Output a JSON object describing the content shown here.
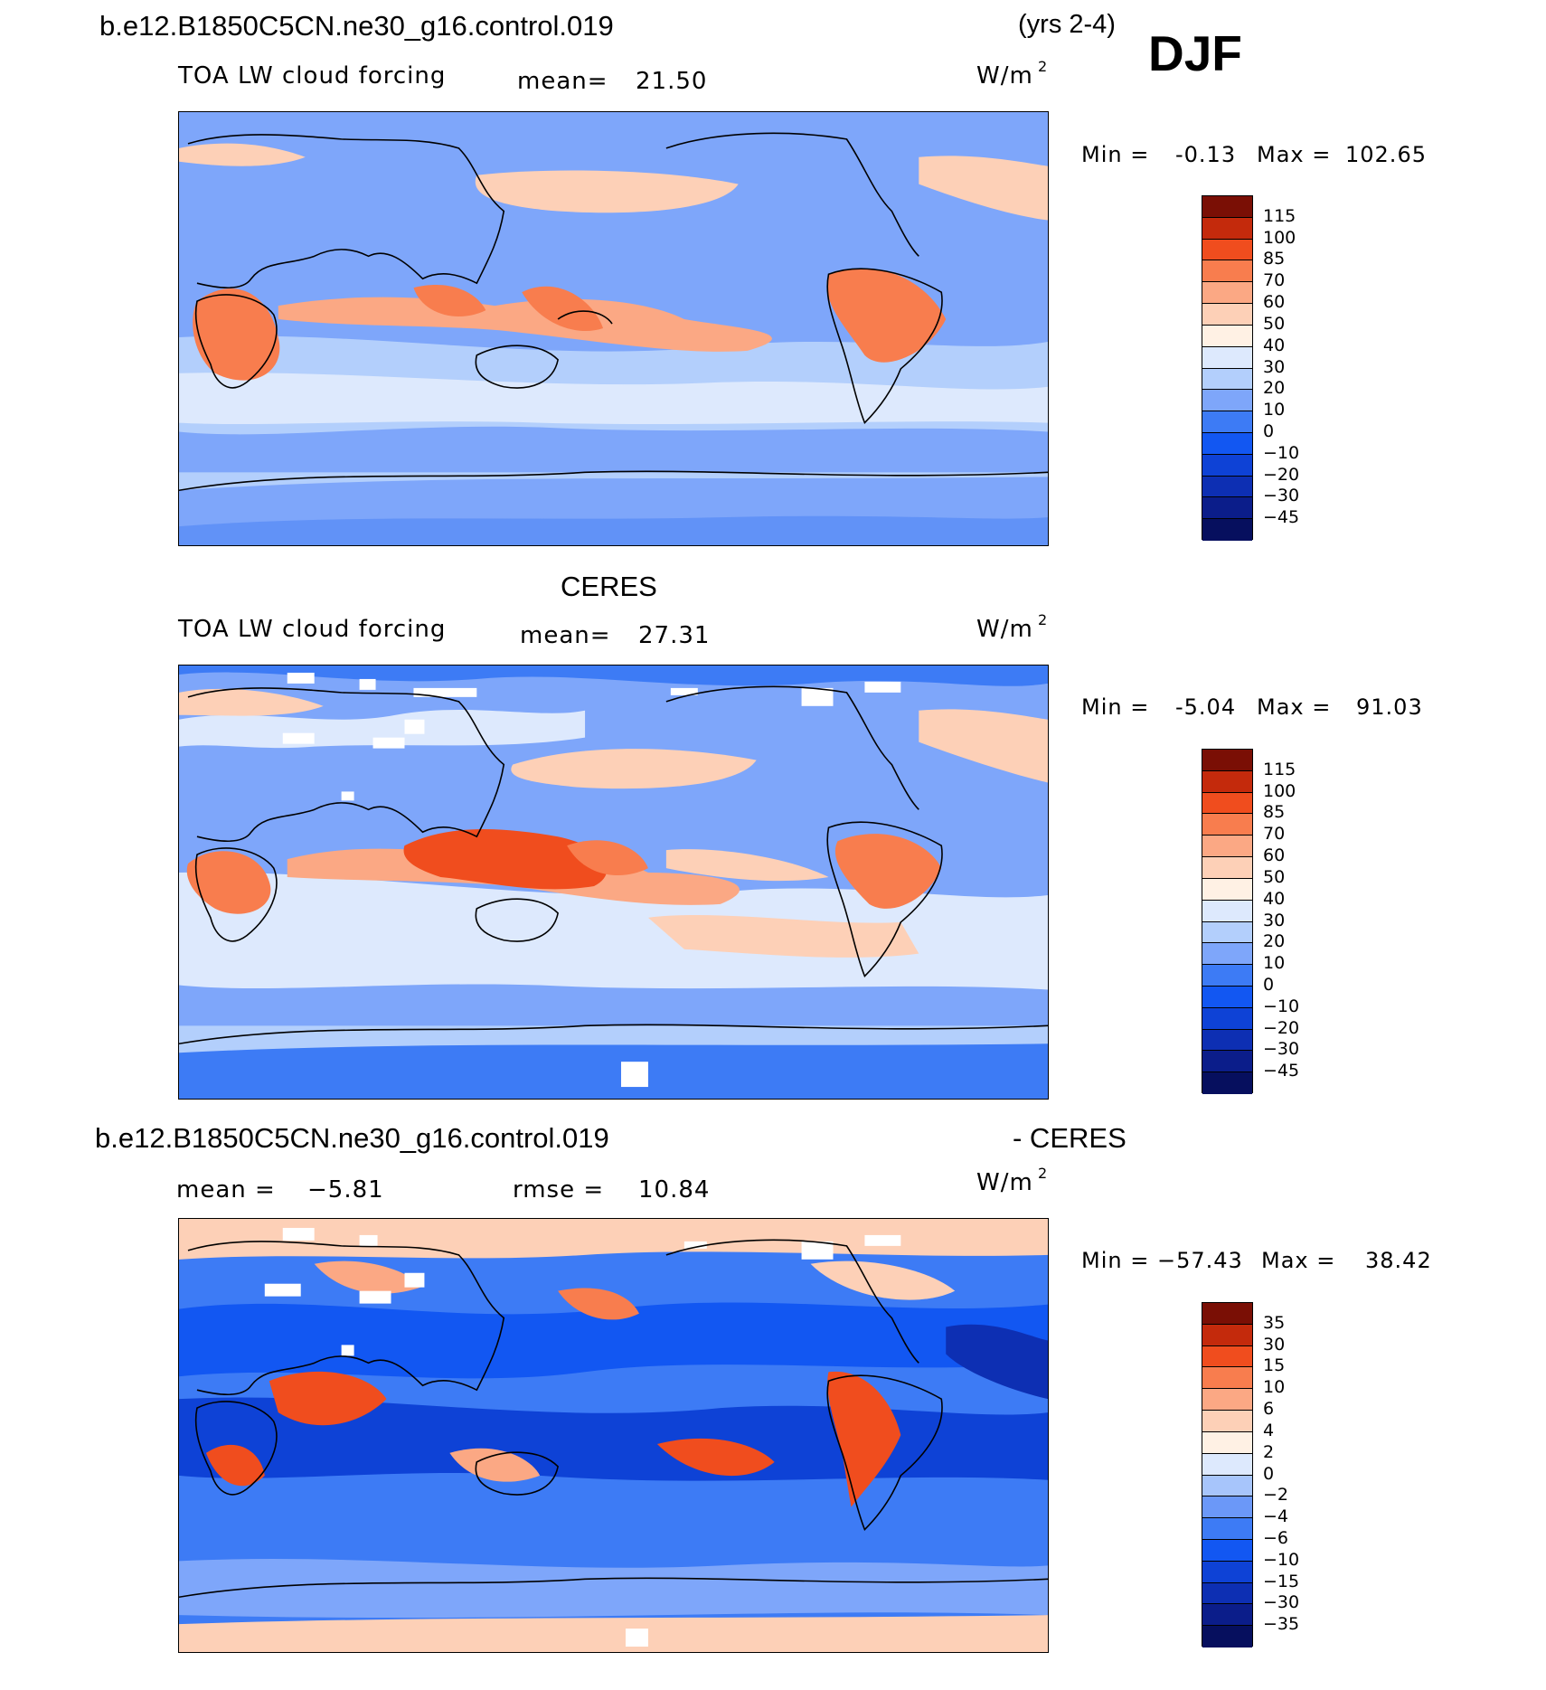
{
  "header": {
    "case_name": "b.e12.B1850C5CN.ne30_g16.control.019",
    "years": "(yrs 2-4)",
    "season": "DJF"
  },
  "middle": {
    "title": "CERES"
  },
  "bottom": {
    "case_name": "b.e12.B1850C5CN.ne30_g16.control.019",
    "suffix": "- CERES"
  },
  "colors": {
    "main_scale": [
      "#0b1d8a",
      "#0d2fb3",
      "#0e42d6",
      "#1257f2",
      "#3d7bf5",
      "#7ea6fa",
      "#b3cffc",
      "#dde9fd",
      "#fff1e4",
      "#fdd0b7",
      "#fba884",
      "#f87d4e",
      "#f04d1e",
      "#c42a0c",
      "#8c1508"
    ],
    "diff_scale": [
      "#0b1d8a",
      "#0d2fb3",
      "#0e42d6",
      "#1257f2",
      "#3d7bf5",
      "#6b98f8",
      "#a7c5fb",
      "#dde9fd",
      "#fff1e4",
      "#fdd0b7",
      "#fba884",
      "#f87d4e",
      "#f04d1e",
      "#c42a0c",
      "#8c1508"
    ],
    "land_outline": "#000000"
  },
  "chart_data": [
    {
      "type": "heatmap",
      "panel": "model",
      "variable": "TOA LW cloud forcing",
      "mean_label": "mean=",
      "mean_value": "21.50",
      "units": "W/m",
      "units_exp": "2",
      "min_label": "Min =",
      "min_value": "-0.13",
      "max_label": "Max =",
      "max_value": "102.65",
      "colorbar_levels": [
        "115",
        "100",
        "85",
        "70",
        "60",
        "50",
        "40",
        "30",
        "20",
        "10",
        "0",
        "−10",
        "−20",
        "−30",
        "−45"
      ]
    },
    {
      "type": "heatmap",
      "panel": "observations",
      "variable": "TOA LW cloud forcing",
      "mean_label": "mean=",
      "mean_value": "27.31",
      "units": "W/m",
      "units_exp": "2",
      "min_label": "Min =",
      "min_value": "-5.04",
      "max_label": "Max =",
      "max_value": "91.03",
      "colorbar_levels": [
        "115",
        "100",
        "85",
        "70",
        "60",
        "50",
        "40",
        "30",
        "20",
        "10",
        "0",
        "−10",
        "−20",
        "−30",
        "−45"
      ]
    },
    {
      "type": "heatmap",
      "panel": "difference",
      "mean_label": "mean =",
      "mean_value": "−5.81",
      "rmse_label": "rmse =",
      "rmse_value": "10.84",
      "units": "W/m",
      "units_exp": "2",
      "min_label": "Min =",
      "min_value": "−57.43",
      "max_label": "Max =",
      "max_value": "38.42",
      "colorbar_levels": [
        "35",
        "30",
        "15",
        "10",
        "6",
        "4",
        "2",
        "0",
        "−2",
        "−4",
        "−6",
        "−10",
        "−15",
        "−30",
        "−35"
      ]
    }
  ]
}
